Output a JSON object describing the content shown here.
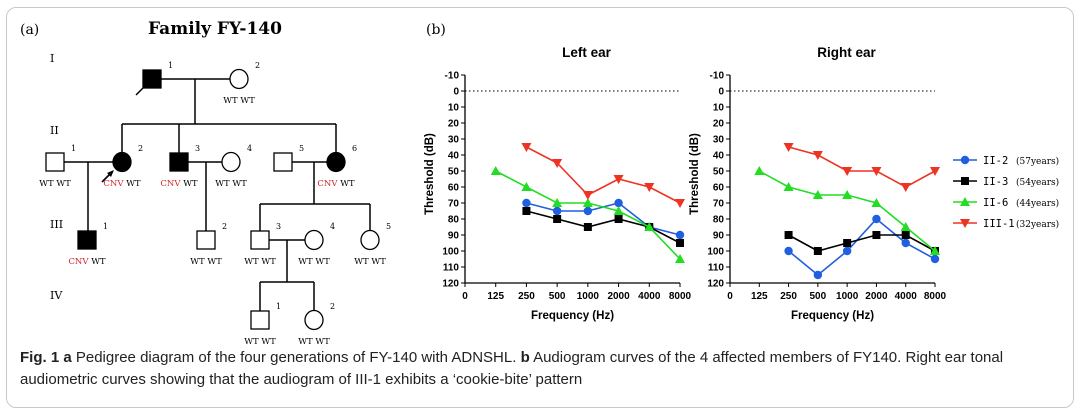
{
  "panel_labels": {
    "a": "(a)",
    "b": "(b)"
  },
  "pedigree": {
    "title": "Family FY-140",
    "generations": [
      "I",
      "II",
      "III",
      "IV"
    ],
    "members": [
      {
        "id": "I-1",
        "num": "1",
        "sex": "male",
        "affected": true,
        "proband": false,
        "genotype": []
      },
      {
        "id": "I-2",
        "num": "2",
        "sex": "female",
        "affected": false,
        "proband": false,
        "genotype": [
          "WT",
          "WT"
        ]
      },
      {
        "id": "II-1",
        "num": "1",
        "sex": "male",
        "affected": false,
        "proband": false,
        "genotype": [
          "WT",
          "WT"
        ]
      },
      {
        "id": "II-2",
        "num": "2",
        "sex": "female",
        "affected": true,
        "proband": true,
        "genotype": [
          "CNV",
          "WT"
        ]
      },
      {
        "id": "II-3",
        "num": "3",
        "sex": "male",
        "affected": true,
        "proband": false,
        "genotype": [
          "CNV",
          "WT"
        ]
      },
      {
        "id": "II-4",
        "num": "4",
        "sex": "female",
        "affected": false,
        "proband": false,
        "genotype": [
          "WT",
          "WT"
        ]
      },
      {
        "id": "II-5",
        "num": "5",
        "sex": "male",
        "affected": false,
        "proband": false,
        "genotype": []
      },
      {
        "id": "II-6",
        "num": "6",
        "sex": "female",
        "affected": true,
        "proband": false,
        "genotype": [
          "CNV",
          "WT"
        ]
      },
      {
        "id": "III-1",
        "num": "1",
        "sex": "male",
        "affected": true,
        "proband": false,
        "genotype": [
          "CNV",
          "WT"
        ]
      },
      {
        "id": "III-2",
        "num": "2",
        "sex": "male",
        "affected": false,
        "proband": false,
        "genotype": [
          "WT",
          "WT"
        ]
      },
      {
        "id": "III-3",
        "num": "3",
        "sex": "male",
        "affected": false,
        "proband": false,
        "genotype": [
          "WT",
          "WT"
        ]
      },
      {
        "id": "III-4",
        "num": "4",
        "sex": "female",
        "affected": false,
        "proband": false,
        "genotype": [
          "WT",
          "WT"
        ]
      },
      {
        "id": "III-5",
        "num": "5",
        "sex": "female",
        "affected": false,
        "proband": false,
        "genotype": [
          "WT",
          "WT"
        ]
      },
      {
        "id": "IV-1",
        "num": "1",
        "sex": "male",
        "affected": false,
        "proband": false,
        "genotype": [
          "WT",
          "WT"
        ]
      },
      {
        "id": "IV-2",
        "num": "2",
        "sex": "female",
        "affected": false,
        "proband": false,
        "genotype": [
          "WT",
          "WT"
        ]
      }
    ],
    "colors": {
      "cnv": "#d0282e",
      "line": "#000000"
    }
  },
  "chart_data": [
    {
      "type": "line",
      "title": "Left ear",
      "xlabel": "Frequency (Hz)",
      "ylabel": "Threshold (dB)",
      "categories": [
        "0",
        "125",
        "250",
        "500",
        "1000",
        "2000",
        "4000",
        "8000"
      ],
      "yticks": [
        "-10",
        "0",
        "10",
        "20",
        "30",
        "40",
        "50",
        "60",
        "70",
        "80",
        "90",
        "100",
        "110",
        "120"
      ],
      "ylim": [
        -10,
        120
      ],
      "reference_line_y": 0,
      "series": [
        {
          "name": "II-2",
          "values": [
            null,
            null,
            70,
            75,
            75,
            70,
            85,
            90
          ]
        },
        {
          "name": "II-3",
          "values": [
            null,
            null,
            75,
            80,
            85,
            80,
            85,
            95
          ]
        },
        {
          "name": "II-6",
          "values": [
            null,
            50,
            60,
            70,
            70,
            75,
            85,
            105
          ]
        },
        {
          "name": "III-1",
          "values": [
            null,
            null,
            35,
            45,
            65,
            55,
            60,
            70
          ]
        }
      ]
    },
    {
      "type": "line",
      "title": "Right ear",
      "xlabel": "Frequency (Hz)",
      "ylabel": "Threshold (dB)",
      "categories": [
        "0",
        "125",
        "250",
        "500",
        "1000",
        "2000",
        "4000",
        "8000"
      ],
      "yticks": [
        "-10",
        "0",
        "10",
        "20",
        "30",
        "40",
        "50",
        "60",
        "70",
        "80",
        "90",
        "100",
        "110",
        "120"
      ],
      "ylim": [
        -10,
        120
      ],
      "reference_line_y": 0,
      "series": [
        {
          "name": "II-2",
          "values": [
            null,
            null,
            100,
            115,
            100,
            80,
            95,
            105
          ]
        },
        {
          "name": "II-3",
          "values": [
            null,
            null,
            90,
            100,
            95,
            90,
            90,
            100
          ]
        },
        {
          "name": "II-6",
          "values": [
            null,
            50,
            60,
            65,
            65,
            70,
            85,
            100
          ]
        },
        {
          "name": "III-1",
          "values": [
            null,
            null,
            35,
            40,
            50,
            50,
            60,
            50
          ]
        }
      ]
    }
  ],
  "legend": [
    {
      "name": "II-2",
      "age": "(57years)",
      "color": "#1f5fe0",
      "marker": "circle"
    },
    {
      "name": "II-3",
      "age": "(54years)",
      "color": "#000000",
      "marker": "square"
    },
    {
      "name": "II-6",
      "age": "(44years)",
      "color": "#22dd22",
      "marker": "triangle-up"
    },
    {
      "name": "III-1",
      "age": "(32years)",
      "color": "#ee3322",
      "marker": "triangle-down"
    }
  ],
  "caption": {
    "fig": "Fig. 1",
    "a": "a",
    "text_a": " Pedigree diagram of the four generations of FY-140 with ADNSHL. ",
    "b": "b",
    "text_b": " Audiogram curves of the 4 affected members of FY140. Right ear tonal audiometric curves showing that the audiogram of III-1 exhibits a ‘cookie-bite’ pattern"
  }
}
